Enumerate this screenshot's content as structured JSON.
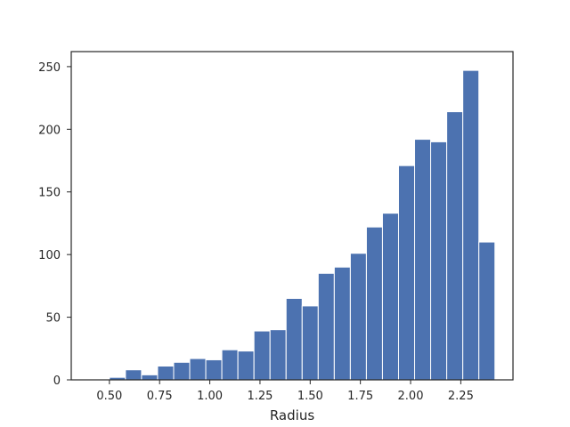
{
  "chart_data": {
    "type": "bar",
    "title": "",
    "xlabel": "Radius",
    "ylabel": "",
    "xlim": [
      0.31,
      2.51
    ],
    "ylim": [
      0,
      262
    ],
    "grid": false,
    "legend": "none",
    "bar_color": "#4c72b0",
    "bin_width": 0.08,
    "bins": [
      {
        "x0": 0.5,
        "x1": 0.58,
        "count": 2
      },
      {
        "x0": 0.58,
        "x1": 0.66,
        "count": 8
      },
      {
        "x0": 0.66,
        "x1": 0.74,
        "count": 4
      },
      {
        "x0": 0.74,
        "x1": 0.82,
        "count": 11
      },
      {
        "x0": 0.82,
        "x1": 0.9,
        "count": 14
      },
      {
        "x0": 0.9,
        "x1": 0.98,
        "count": 17
      },
      {
        "x0": 0.98,
        "x1": 1.06,
        "count": 16
      },
      {
        "x0": 1.06,
        "x1": 1.14,
        "count": 24
      },
      {
        "x0": 1.14,
        "x1": 1.22,
        "count": 23
      },
      {
        "x0": 1.22,
        "x1": 1.3,
        "count": 39
      },
      {
        "x0": 1.3,
        "x1": 1.38,
        "count": 40
      },
      {
        "x0": 1.38,
        "x1": 1.46,
        "count": 65
      },
      {
        "x0": 1.46,
        "x1": 1.54,
        "count": 59
      },
      {
        "x0": 1.54,
        "x1": 1.62,
        "count": 85
      },
      {
        "x0": 1.62,
        "x1": 1.7,
        "count": 90
      },
      {
        "x0": 1.7,
        "x1": 1.78,
        "count": 101
      },
      {
        "x0": 1.78,
        "x1": 1.86,
        "count": 122
      },
      {
        "x0": 1.86,
        "x1": 1.94,
        "count": 133
      },
      {
        "x0": 1.94,
        "x1": 2.02,
        "count": 171
      },
      {
        "x0": 2.02,
        "x1": 2.1,
        "count": 192
      },
      {
        "x0": 2.1,
        "x1": 2.18,
        "count": 190
      },
      {
        "x0": 2.18,
        "x1": 2.26,
        "count": 214
      },
      {
        "x0": 2.26,
        "x1": 2.34,
        "count": 247
      },
      {
        "x0": 2.34,
        "x1": 2.42,
        "count": 110
      }
    ],
    "x_ticks": [
      {
        "value": 0.5,
        "label": "0.50"
      },
      {
        "value": 0.75,
        "label": "0.75"
      },
      {
        "value": 1.0,
        "label": "1.00"
      },
      {
        "value": 1.25,
        "label": "1.25"
      },
      {
        "value": 1.5,
        "label": "1.50"
      },
      {
        "value": 1.75,
        "label": "1.75"
      },
      {
        "value": 2.0,
        "label": "2.00"
      },
      {
        "value": 2.25,
        "label": "2.25"
      }
    ],
    "y_ticks": [
      {
        "value": 0,
        "label": "0"
      },
      {
        "value": 50,
        "label": "50"
      },
      {
        "value": 100,
        "label": "100"
      },
      {
        "value": 150,
        "label": "150"
      },
      {
        "value": 200,
        "label": "200"
      },
      {
        "value": 250,
        "label": "250"
      }
    ]
  }
}
